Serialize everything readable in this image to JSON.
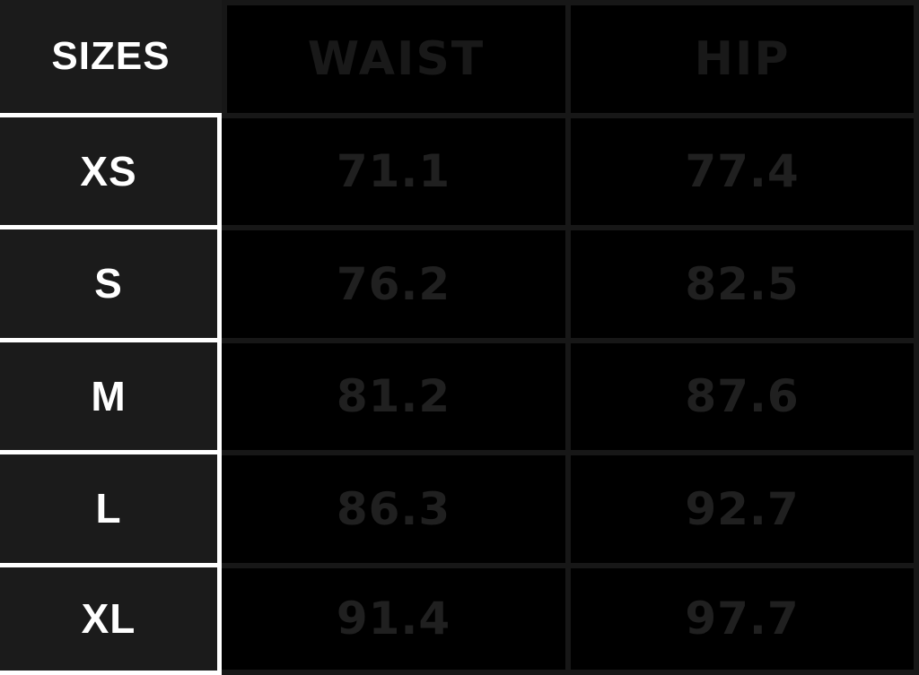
{
  "chart_data": {
    "type": "table",
    "title": "Garment size chart (waist and hip measurements)",
    "columns": [
      "SIZES",
      "WAIST",
      "HIP"
    ],
    "rows": [
      {
        "size": "XS",
        "waist": "71.1",
        "hip": "77.4"
      },
      {
        "size": "S",
        "waist": "76.2",
        "hip": "82.5"
      },
      {
        "size": "M",
        "waist": "81.2",
        "hip": "87.6"
      },
      {
        "size": "L",
        "waist": "86.3",
        "hip": "92.7"
      },
      {
        "size": "XL",
        "waist": "91.4",
        "hip": "97.7"
      }
    ]
  },
  "colors": {
    "table_bg": "#000000",
    "row_label_bg": "#1b1b1b",
    "grid_line": "#171717",
    "separator": "#ffffff",
    "label_text": "#ffffff",
    "header_value_text": "#191919",
    "value_text": "#202020"
  }
}
